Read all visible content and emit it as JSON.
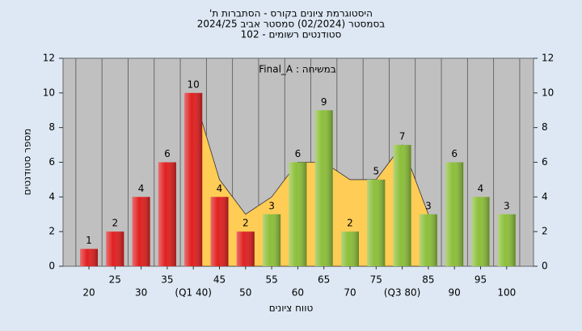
{
  "chart_data": {
    "type": "bar",
    "title": "היסטוגרמת ציונים בקורס - הסתברות ת'",
    "subtitle": "בסמסטר (02/2024) סמסטר אביב 2024/25",
    "subtitle2": "סטודנטים רשומים - 102",
    "annotation": "במשיחה : Final_A",
    "x_label": "טווח ציונים",
    "y_label": "מספר סטודנטים",
    "categories": [
      "20",
      "25",
      "30",
      "35",
      "(Q1 40)",
      "45",
      "50",
      "55",
      "60",
      "65",
      "70",
      "75",
      "(Q3 80)",
      "85",
      "90",
      "95",
      "100"
    ],
    "values": [
      1,
      2,
      4,
      6,
      10,
      4,
      2,
      3,
      6,
      9,
      2,
      5,
      7,
      3,
      6,
      4,
      3
    ],
    "colors": [
      "#e02020",
      "#e02020",
      "#e02020",
      "#e02020",
      "#e02020",
      "#e02020",
      "#e02020",
      "#8cbf3a",
      "#8cbf3a",
      "#8cbf3a",
      "#8cbf3a",
      "#8cbf3a",
      "#8cbf3a",
      "#8cbf3a",
      "#8cbf3a",
      "#8cbf3a",
      "#8cbf3a"
    ],
    "area": {
      "color": "#ffcc55",
      "values": [
        null,
        null,
        null,
        null,
        10,
        5,
        3,
        4,
        6,
        6,
        5,
        5,
        7,
        3,
        null,
        null,
        null
      ]
    },
    "ylim": [
      0,
      12
    ],
    "yticks": [
      0,
      2,
      4,
      6,
      8,
      10,
      12
    ],
    "grid": true
  }
}
